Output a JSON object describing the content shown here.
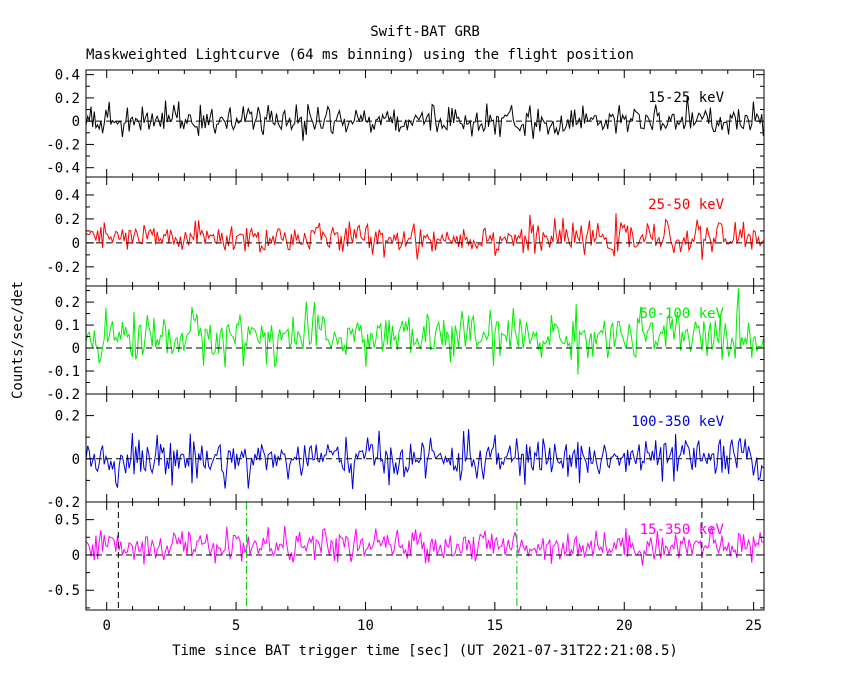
{
  "header": {
    "title": "Swift-BAT GRB",
    "subtitle": "Maskweighted Lightcurve (64 ms binning) using the flight position"
  },
  "axes": {
    "xlabel": "Time since BAT trigger time [sec] (UT 2021-07-31T22:21:08.5)",
    "ylabel": "Counts/sec/det",
    "xlim": [
      -0.8,
      25.4
    ],
    "xticks": [
      0,
      5,
      10,
      15,
      20,
      25
    ],
    "xtick_labels": [
      "0",
      "5",
      "10",
      "15",
      "20",
      "25"
    ]
  },
  "chart_data": [
    {
      "type": "line",
      "band": "15-25 keV",
      "color": "#000000",
      "ylim": [
        -0.48,
        0.44
      ],
      "yticks": [
        -0.4,
        -0.2,
        0,
        0.2,
        0.4
      ],
      "ytick_labels": [
        "-0.4",
        "-0.2",
        "0",
        "0.2",
        "0.4"
      ],
      "noise": {
        "mean": 0.0,
        "sigma": 0.065,
        "bin_sec": 0.064
      }
    },
    {
      "type": "line",
      "band": "25-50 keV",
      "color": "#ff0000",
      "ylim": [
        -0.36,
        0.55
      ],
      "yticks": [
        -0.2,
        0,
        0.2,
        0.4
      ],
      "ytick_labels": [
        "-0.2",
        "0",
        "0.2",
        "0.4"
      ],
      "noise": {
        "mean": 0.04,
        "sigma": 0.065,
        "bin_sec": 0.064
      }
    },
    {
      "type": "line",
      "band": "50-100 keV",
      "color": "#00ee00",
      "ylim": [
        -0.2,
        0.27
      ],
      "yticks": [
        -0.2,
        -0.1,
        0,
        0.1,
        0.2
      ],
      "ytick_labels": [
        "-0.2",
        "-0.1",
        "0",
        "0.1",
        "0.2"
      ],
      "noise": {
        "mean": 0.05,
        "sigma": 0.055,
        "bin_sec": 0.064
      }
    },
    {
      "type": "line",
      "band": "100-350 keV",
      "color": "#0000dd",
      "ylim": [
        -0.2,
        0.3
      ],
      "yticks": [
        -0.2,
        0,
        0.2
      ],
      "ytick_labels": [
        "-0.2",
        "0",
        "0.2"
      ],
      "noise": {
        "mean": 0.0,
        "sigma": 0.05,
        "bin_sec": 0.064
      }
    },
    {
      "type": "line",
      "band": "15-350 keV",
      "color": "#ff00ff",
      "ylim": [
        -0.78,
        0.75
      ],
      "yticks": [
        -0.5,
        0,
        0.5
      ],
      "ytick_labels": [
        "-0.5",
        "0",
        "0.5"
      ],
      "noise": {
        "mean": 0.13,
        "sigma": 0.11,
        "bin_sec": 0.064
      },
      "markers": [
        {
          "x": 0.45,
          "style": "dashed",
          "color": "#000000"
        },
        {
          "x": 5.4,
          "style": "dashdot",
          "color": "#00cc00"
        },
        {
          "x": 15.85,
          "style": "dashdot",
          "color": "#00cc00"
        },
        {
          "x": 23.0,
          "style": "dashed",
          "color": "#000000"
        }
      ]
    }
  ]
}
